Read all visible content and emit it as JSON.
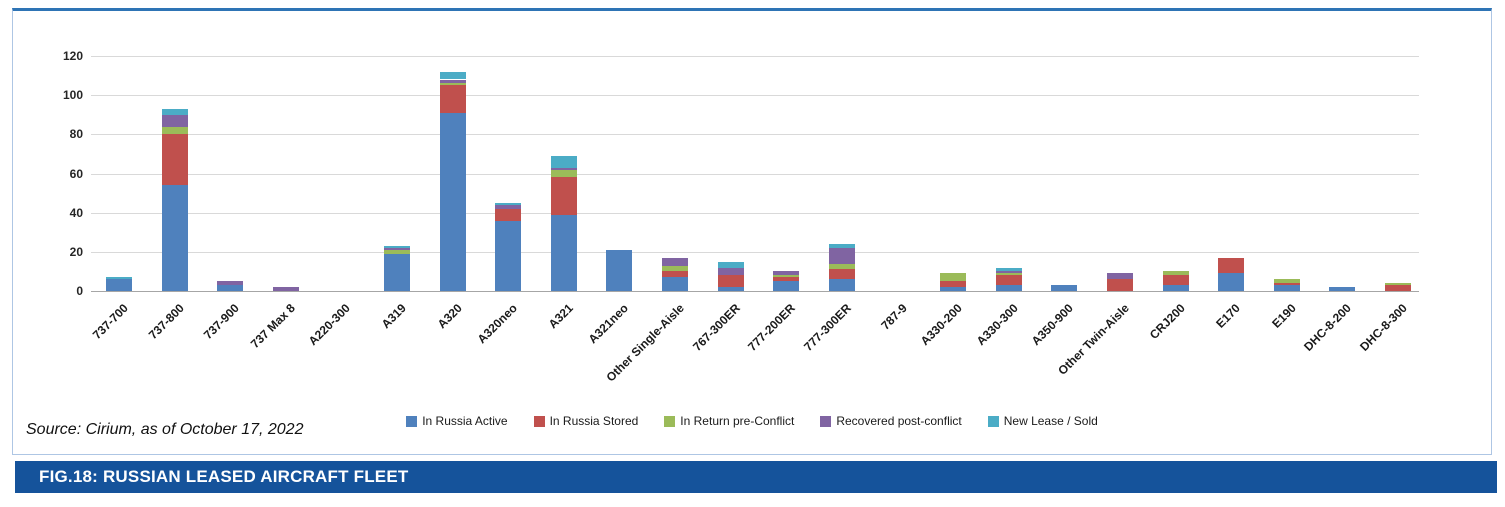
{
  "banner": {
    "title": "FIG.18: RUSSIAN LEASED AIRCRAFT FLEET",
    "bg_color": "#15539b"
  },
  "source_note": "Source: Cirium, as of October 17, 2022",
  "chart_data": {
    "type": "bar",
    "stacked": true,
    "title": "",
    "xlabel": "",
    "ylabel": "",
    "ylim": [
      0,
      120
    ],
    "ytick_step": 20,
    "yticks": [
      0,
      20,
      40,
      60,
      80,
      100,
      120
    ],
    "grid": true,
    "legend_position": "bottom",
    "categories": [
      "737-700",
      "737-800",
      "737-900",
      "737 Max 8",
      "A220-300",
      "A319",
      "A320",
      "A320neo",
      "A321",
      "A321neo",
      "Other Single-Aisle",
      "767-300ER",
      "777-200ER",
      "777-300ER",
      "787-9",
      "A330-200",
      "A330-300",
      "A350-900",
      "Other Twin-Aisle",
      "CRJ200",
      "E170",
      "E190",
      "DHC-8-200",
      "DHC-8-300"
    ],
    "series": [
      {
        "name": "In Russia Active",
        "color": "#4f81bd",
        "values": [
          6,
          54,
          3,
          0,
          0,
          19,
          91,
          36,
          39,
          21,
          7,
          2,
          5,
          6,
          0,
          2,
          3,
          3,
          0,
          3,
          9,
          3,
          2,
          0
        ]
      },
      {
        "name": "In Russia Stored",
        "color": "#c0504d",
        "values": [
          0,
          26,
          0,
          0,
          0,
          0,
          14,
          6,
          19,
          0,
          3,
          6,
          2,
          5,
          0,
          3,
          5,
          0,
          6,
          5,
          8,
          1,
          0,
          3
        ]
      },
      {
        "name": "In Return pre-Conflict",
        "color": "#9bbb59",
        "values": [
          0,
          4,
          0,
          0,
          0,
          2,
          1,
          0,
          4,
          0,
          3,
          0,
          1,
          3,
          0,
          4,
          1,
          0,
          0,
          2,
          0,
          2,
          0,
          1
        ]
      },
      {
        "name": "Recovered post-conflict",
        "color": "#8064a2",
        "values": [
          0,
          6,
          2,
          2,
          0,
          1,
          2,
          2,
          1,
          0,
          4,
          4,
          2,
          8,
          0,
          0,
          1,
          0,
          3,
          0,
          0,
          0,
          0,
          0
        ]
      },
      {
        "name": "New Lease / Sold",
        "color": "#4bacc6",
        "values": [
          1,
          3,
          0,
          0,
          0,
          1,
          4,
          1,
          6,
          0,
          0,
          3,
          0,
          2,
          0,
          0,
          2,
          0,
          0,
          0,
          0,
          0,
          0,
          0
        ]
      }
    ]
  }
}
